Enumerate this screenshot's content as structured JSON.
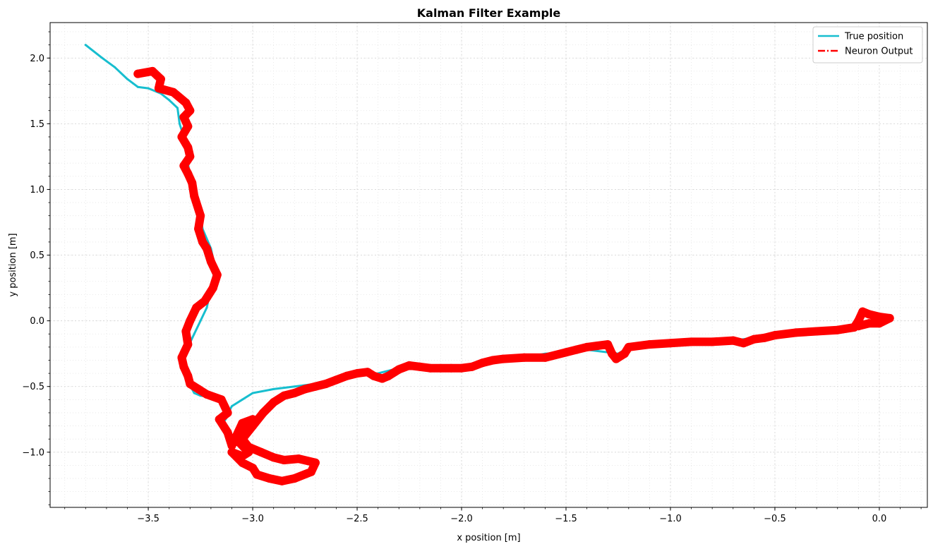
{
  "chart_data": {
    "type": "line",
    "title": "Kalman Filter Example",
    "xlabel": "x position [m]",
    "ylabel": "y position [m]",
    "xlim": [
      -3.97,
      0.23
    ],
    "ylim": [
      -1.42,
      2.27
    ],
    "x_ticks": [
      -3.5,
      -3.0,
      -2.5,
      -2.0,
      -1.5,
      -1.0,
      -0.5,
      0.0
    ],
    "x_tick_labels": [
      "−3.5",
      "−3.0",
      "−2.5",
      "−2.0",
      "−1.5",
      "−1.0",
      "−0.5",
      "0.0"
    ],
    "y_ticks": [
      -1.0,
      -0.5,
      0.0,
      0.5,
      1.0,
      1.5,
      2.0
    ],
    "y_tick_labels": [
      "−1.0",
      "−0.5",
      "0.0",
      "0.5",
      "1.0",
      "1.5",
      "2.0"
    ],
    "grid": true,
    "legend_position": "top-right",
    "series": [
      {
        "name": "True position",
        "color": "#17becf",
        "style": "solid",
        "x": [
          -3.8,
          -3.72,
          -3.66,
          -3.6,
          -3.55,
          -3.5,
          -3.44,
          -3.4,
          -3.36,
          -3.35,
          -3.33,
          -3.31,
          -3.31,
          -3.3,
          -3.3,
          -3.28,
          -3.25,
          -3.24,
          -3.2,
          -3.18,
          -3.2,
          -3.22,
          -3.25,
          -3.28,
          -3.31,
          -3.34,
          -3.33,
          -3.31,
          -3.29,
          -3.28,
          -3.25,
          -3.2,
          -3.15,
          -3.11,
          -3.15,
          -3.1,
          -3.05,
          -3.0,
          -2.9,
          -2.8,
          -2.7,
          -2.6,
          -2.5,
          -2.4,
          -2.3,
          -2.2,
          -2.1,
          -2.0,
          -1.9,
          -1.8,
          -1.7,
          -1.6,
          -1.5,
          -1.4,
          -1.3,
          -1.25,
          -1.2,
          -1.1,
          -1.0,
          -0.9,
          -0.8,
          -0.7,
          -0.6,
          -0.5,
          -0.4,
          -0.3,
          -0.2,
          -0.1,
          -0.05,
          0.0
        ],
        "y": [
          2.1,
          2.0,
          1.93,
          1.84,
          1.78,
          1.77,
          1.73,
          1.68,
          1.62,
          1.5,
          1.4,
          1.3,
          1.2,
          1.1,
          1.0,
          0.9,
          0.8,
          0.7,
          0.55,
          0.4,
          0.25,
          0.1,
          0.0,
          -0.1,
          -0.2,
          -0.3,
          -0.4,
          -0.48,
          -0.52,
          -0.55,
          -0.57,
          -0.58,
          -0.62,
          -0.7,
          -0.8,
          -0.65,
          -0.6,
          -0.55,
          -0.52,
          -0.5,
          -0.48,
          -0.45,
          -0.41,
          -0.4,
          -0.36,
          -0.35,
          -0.35,
          -0.35,
          -0.3,
          -0.28,
          -0.28,
          -0.25,
          -0.24,
          -0.22,
          -0.24,
          -0.25,
          -0.2,
          -0.18,
          -0.17,
          -0.16,
          -0.15,
          -0.15,
          -0.13,
          -0.12,
          -0.1,
          -0.08,
          -0.07,
          -0.05,
          -0.02,
          0.0
        ]
      },
      {
        "name": "Neuron Output",
        "color": "#ff0000",
        "style": "dash-dot",
        "x": [
          -3.55,
          -3.48,
          -3.44,
          -3.45,
          -3.38,
          -3.32,
          -3.3,
          -3.33,
          -3.31,
          -3.34,
          -3.31,
          -3.3,
          -3.33,
          -3.31,
          -3.29,
          -3.28,
          -3.25,
          -3.26,
          -3.24,
          -3.22,
          -3.2,
          -3.17,
          -3.19,
          -3.23,
          -3.27,
          -3.3,
          -3.32,
          -3.31,
          -3.34,
          -3.33,
          -3.31,
          -3.3,
          -3.26,
          -3.22,
          -3.15,
          -3.12,
          -3.16,
          -3.12,
          -3.1,
          -3.05,
          -3.0,
          -3.08,
          -3.02,
          -3.05,
          -3.1,
          -3.05,
          -3.0,
          -2.98,
          -2.92,
          -2.86,
          -2.8,
          -2.72,
          -2.7,
          -2.78,
          -2.85,
          -2.9,
          -2.96,
          -3.02,
          -3.05,
          -3.0,
          -2.95,
          -2.9,
          -2.85,
          -2.8,
          -2.75,
          -2.7,
          -2.65,
          -2.6,
          -2.55,
          -2.5,
          -2.45,
          -2.42,
          -2.38,
          -2.35,
          -2.3,
          -2.25,
          -2.2,
          -2.15,
          -2.1,
          -2.05,
          -2.0,
          -1.95,
          -1.9,
          -1.85,
          -1.8,
          -1.7,
          -1.6,
          -1.5,
          -1.45,
          -1.4,
          -1.35,
          -1.3,
          -1.28,
          -1.26,
          -1.22,
          -1.2,
          -1.1,
          -1.0,
          -0.9,
          -0.8,
          -0.7,
          -0.65,
          -0.6,
          -0.55,
          -0.5,
          -0.4,
          -0.3,
          -0.2,
          -0.12,
          -0.1,
          -0.08,
          -0.05,
          0.0,
          0.05,
          0.0,
          -0.05,
          -0.1
        ],
        "y": [
          1.88,
          1.9,
          1.84,
          1.77,
          1.74,
          1.66,
          1.6,
          1.55,
          1.48,
          1.4,
          1.32,
          1.25,
          1.18,
          1.12,
          1.05,
          0.95,
          0.8,
          0.7,
          0.6,
          0.55,
          0.45,
          0.35,
          0.25,
          0.15,
          0.1,
          0.0,
          -0.08,
          -0.18,
          -0.28,
          -0.35,
          -0.42,
          -0.48,
          -0.52,
          -0.56,
          -0.6,
          -0.7,
          -0.75,
          -0.85,
          -0.95,
          -0.78,
          -0.75,
          -0.9,
          -1.0,
          -1.03,
          -1.0,
          -1.08,
          -1.12,
          -1.17,
          -1.2,
          -1.22,
          -1.2,
          -1.15,
          -1.08,
          -1.05,
          -1.06,
          -1.04,
          -1.0,
          -0.96,
          -0.9,
          -0.8,
          -0.7,
          -0.62,
          -0.57,
          -0.55,
          -0.52,
          -0.5,
          -0.48,
          -0.45,
          -0.42,
          -0.4,
          -0.39,
          -0.42,
          -0.44,
          -0.42,
          -0.37,
          -0.34,
          -0.35,
          -0.36,
          -0.36,
          -0.36,
          -0.36,
          -0.35,
          -0.32,
          -0.3,
          -0.29,
          -0.28,
          -0.28,
          -0.24,
          -0.22,
          -0.2,
          -0.19,
          -0.18,
          -0.25,
          -0.29,
          -0.25,
          -0.2,
          -0.18,
          -0.17,
          -0.16,
          -0.16,
          -0.15,
          -0.17,
          -0.14,
          -0.13,
          -0.11,
          -0.09,
          -0.08,
          -0.07,
          -0.05,
          0.0,
          0.07,
          0.05,
          0.03,
          0.02,
          -0.02,
          -0.02,
          -0.04
        ]
      }
    ]
  }
}
